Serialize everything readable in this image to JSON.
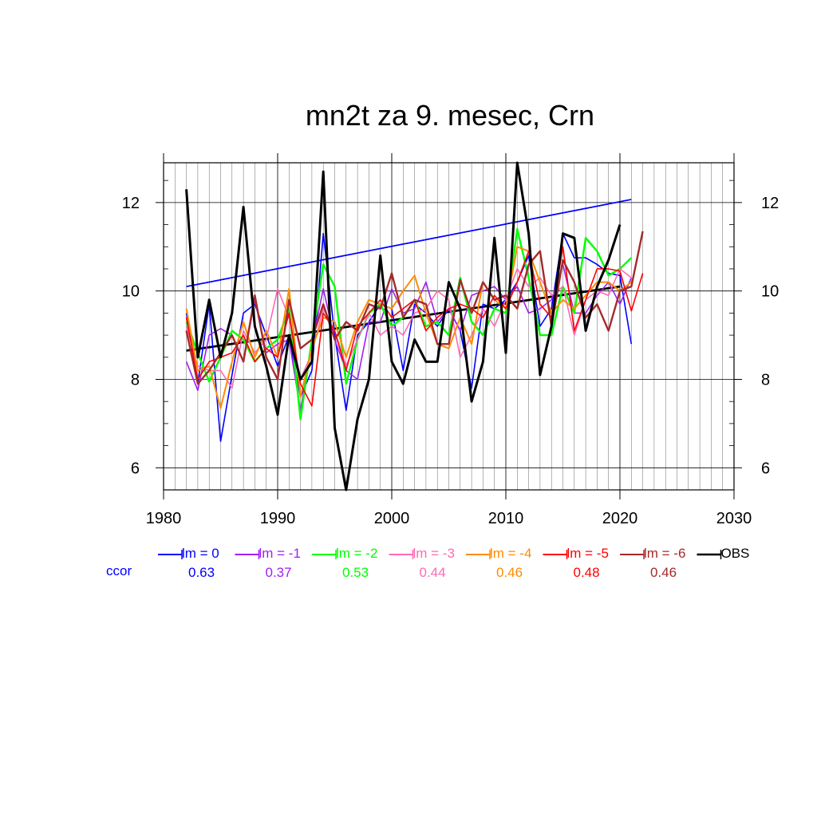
{
  "chart_data": {
    "type": "line",
    "title": "mn2t za 9. mesec, Crn",
    "xlim": [
      1980,
      2030
    ],
    "ylim": [
      5.5,
      12.9
    ],
    "x_ticks": [
      1980,
      1990,
      2000,
      2010,
      2020,
      2030
    ],
    "y_ticks": [
      6,
      8,
      10,
      12
    ],
    "ccor_label": "ccor",
    "series": [
      {
        "name": "lm = 0",
        "color": "#0000ff",
        "ccor": "0.63",
        "width": 1.6,
        "x": [
          1982,
          1983,
          1984,
          1985,
          1986,
          1987,
          1988,
          1989,
          1990,
          1991,
          1992,
          1993,
          1994,
          1995,
          1996,
          1997,
          1998,
          1999,
          2000,
          2001,
          2002,
          2003,
          2004,
          2005,
          2006,
          2007,
          2008,
          2009,
          2010,
          2011,
          2012,
          2013,
          2014,
          2015,
          2016,
          2017,
          2018,
          2019,
          2020,
          2021
        ],
        "values": [
          9.5,
          7.9,
          9.7,
          6.6,
          8.1,
          9.5,
          9.7,
          9.0,
          8.3,
          9.0,
          7.6,
          8.2,
          11.3,
          9.0,
          7.3,
          9.0,
          9.3,
          9.7,
          9.6,
          8.2,
          9.7,
          9.5,
          9.2,
          9.6,
          9.1,
          7.8,
          9.7,
          9.6,
          9.8,
          10.2,
          10.8,
          9.2,
          9.6,
          11.3,
          10.75,
          10.75,
          10.6,
          10.4,
          10.35,
          8.8
        ]
      },
      {
        "name": "lm = -1",
        "color": "#a020f0",
        "ccor": "0.37",
        "width": 1.6,
        "x": [
          1982,
          1983,
          1984,
          1985,
          1986,
          1987,
          1988,
          1989,
          1990,
          1991,
          1992,
          1993,
          1994,
          1995,
          1996,
          1997,
          1998,
          1999,
          2000,
          2001,
          2002,
          2003,
          2004,
          2005,
          2006,
          2007,
          2008,
          2009,
          2010,
          2011,
          2012,
          2013,
          2014,
          2015,
          2016,
          2017,
          2018,
          2019,
          2020,
          2021
        ],
        "values": [
          8.4,
          7.75,
          9.0,
          9.15,
          9.0,
          8.4,
          9.8,
          8.6,
          8.8,
          8.9,
          7.3,
          8.8,
          10.05,
          8.9,
          8.2,
          8.0,
          9.3,
          9.3,
          10.05,
          9.5,
          9.6,
          10.2,
          9.3,
          9.6,
          9.1,
          9.9,
          10.0,
          10.1,
          9.8,
          10.1,
          9.5,
          9.6,
          9.8,
          10.6,
          9.5,
          9.5,
          9.9,
          10.2,
          9.7,
          10.3
        ]
      },
      {
        "name": "lm = -2",
        "color": "#00ff00",
        "ccor": "0.53",
        "width": 2.4,
        "x": [
          1982,
          1983,
          1984,
          1985,
          1986,
          1987,
          1988,
          1989,
          1990,
          1991,
          1992,
          1993,
          1994,
          1995,
          1996,
          1997,
          1998,
          1999,
          2000,
          2001,
          2002,
          2003,
          2004,
          2005,
          2006,
          2007,
          2008,
          2009,
          2010,
          2011,
          2012,
          2013,
          2014,
          2015,
          2016,
          2017,
          2018,
          2019,
          2020,
          2021
        ],
        "values": [
          9.3,
          8.6,
          7.95,
          8.5,
          9.1,
          8.9,
          8.4,
          8.7,
          8.9,
          9.6,
          7.1,
          8.9,
          10.6,
          10.1,
          7.9,
          8.9,
          9.5,
          9.7,
          9.2,
          9.4,
          9.8,
          9.2,
          9.3,
          9.0,
          10.3,
          9.3,
          9.0,
          9.6,
          9.5,
          11.4,
          10.3,
          9.0,
          9.0,
          10.1,
          9.5,
          11.2,
          10.9,
          10.35,
          10.5,
          10.75
        ]
      },
      {
        "name": "lm = -3",
        "color": "#ff69b4",
        "ccor": "0.44",
        "width": 1.6,
        "x": [
          1982,
          1983,
          1984,
          1985,
          1986,
          1987,
          1988,
          1989,
          1990,
          1991,
          1992,
          1993,
          1994,
          1995,
          1996,
          1997,
          1998,
          1999,
          2000,
          2001,
          2002,
          2003,
          2004,
          2005,
          2006,
          2007,
          2008,
          2009,
          2010,
          2011,
          2012,
          2013,
          2014,
          2015,
          2016,
          2017,
          2018,
          2019,
          2020,
          2021
        ],
        "values": [
          9.2,
          8.3,
          8.2,
          8.2,
          7.8,
          9.1,
          8.6,
          8.9,
          10.05,
          9.4,
          8.0,
          8.6,
          9.6,
          9.1,
          8.3,
          8.9,
          9.5,
          9.0,
          9.2,
          9.0,
          9.5,
          9.6,
          10.0,
          9.8,
          8.5,
          9.0,
          9.6,
          9.2,
          9.8,
          10.5,
          10.1,
          10.3,
          9.9,
          10.1,
          9.0,
          9.8,
          10.0,
          9.9,
          10.5,
          10.3
        ]
      },
      {
        "name": "lm = -4",
        "color": "#ff8c00",
        "ccor": "0.46",
        "width": 2.0,
        "x": [
          1982,
          1983,
          1984,
          1985,
          1986,
          1987,
          1988,
          1989,
          1990,
          1991,
          1992,
          1993,
          1994,
          1995,
          1996,
          1997,
          1998,
          1999,
          2000,
          2001,
          2002,
          2003,
          2004,
          2005,
          2006,
          2007,
          2008,
          2009,
          2010,
          2011,
          2012,
          2013,
          2014,
          2015,
          2016,
          2017,
          2018,
          2019,
          2020,
          2021
        ],
        "values": [
          9.6,
          8.2,
          8.3,
          7.35,
          8.4,
          9.3,
          8.5,
          9.1,
          8.5,
          10.05,
          7.6,
          8.7,
          9.4,
          9.3,
          8.5,
          9.3,
          9.8,
          9.7,
          9.6,
          10.0,
          10.35,
          9.5,
          8.8,
          8.7,
          9.4,
          8.8,
          10.2,
          9.8,
          9.6,
          11.0,
          10.9,
          10.2,
          9.5,
          9.8,
          9.6,
          9.9,
          10.2,
          10.2,
          10.0,
          10.2
        ]
      },
      {
        "name": "lm = -5",
        "color": "#ff0000",
        "ccor": "0.48",
        "width": 1.6,
        "x": [
          1982,
          1983,
          1984,
          1985,
          1986,
          1987,
          1988,
          1989,
          1990,
          1991,
          1992,
          1993,
          1994,
          1995,
          1996,
          1997,
          1998,
          1999,
          2000,
          2001,
          2002,
          2003,
          2004,
          2005,
          2006,
          2007,
          2008,
          2009,
          2010,
          2011,
          2012,
          2013,
          2014,
          2015,
          2016,
          2017,
          2018,
          2019,
          2020,
          2021,
          2022
        ],
        "values": [
          9.4,
          8.0,
          8.4,
          8.5,
          8.6,
          9.0,
          8.4,
          8.7,
          8.5,
          9.5,
          7.9,
          7.4,
          9.5,
          9.1,
          8.2,
          9.2,
          9.5,
          9.8,
          9.4,
          9.6,
          9.8,
          9.1,
          9.4,
          9.6,
          9.7,
          9.6,
          9.4,
          9.9,
          9.6,
          10.2,
          10.9,
          9.7,
          9.4,
          11.0,
          9.1,
          9.8,
          10.5,
          10.5,
          10.45,
          9.55,
          10.4
        ]
      },
      {
        "name": "lm = -6",
        "color": "#a52a2a",
        "ccor": "0.46",
        "width": 2.4,
        "x": [
          1982,
          1983,
          1984,
          1985,
          1986,
          1987,
          1988,
          1989,
          1990,
          1991,
          1992,
          1993,
          1994,
          1995,
          1996,
          1997,
          1998,
          1999,
          2000,
          2001,
          2002,
          2003,
          2004,
          2005,
          2006,
          2007,
          2008,
          2009,
          2010,
          2011,
          2012,
          2013,
          2014,
          2015,
          2016,
          2017,
          2018,
          2019,
          2020,
          2021,
          2022
        ],
        "values": [
          9.1,
          7.9,
          8.2,
          8.6,
          9.0,
          8.4,
          9.9,
          8.5,
          8.0,
          9.8,
          8.7,
          8.9,
          9.7,
          8.9,
          9.3,
          9.1,
          9.7,
          9.6,
          10.4,
          9.4,
          9.8,
          9.7,
          8.8,
          8.8,
          10.25,
          9.5,
          10.2,
          9.8,
          9.9,
          9.6,
          10.6,
          10.9,
          9.2,
          10.7,
          10.2,
          9.4,
          9.7,
          9.1,
          10.0,
          10.1,
          11.35
        ]
      },
      {
        "name": "OBS",
        "color": "#000000",
        "ccor": "",
        "width": 3.0,
        "x": [
          1982,
          1983,
          1984,
          1985,
          1986,
          1987,
          1988,
          1989,
          1990,
          1991,
          1992,
          1993,
          1994,
          1995,
          1996,
          1997,
          1998,
          1999,
          2000,
          2001,
          2002,
          2003,
          2004,
          2005,
          2006,
          2007,
          2008,
          2009,
          2010,
          2011,
          2012,
          2013,
          2014,
          2015,
          2016,
          2017,
          2018,
          2019,
          2020
        ],
        "values": [
          12.3,
          8.5,
          9.8,
          8.5,
          9.5,
          11.9,
          9.2,
          8.3,
          7.2,
          9.0,
          8.0,
          8.4,
          12.7,
          6.9,
          5.5,
          7.1,
          8.0,
          10.8,
          8.4,
          7.9,
          8.9,
          8.4,
          8.4,
          10.2,
          9.6,
          7.5,
          8.4,
          11.2,
          8.6,
          12.9,
          11.3,
          8.1,
          9.2,
          11.3,
          11.2,
          9.1,
          10.1,
          10.7,
          11.5
        ]
      }
    ],
    "trend_lines": [
      {
        "name": "lm = 0 trend",
        "color": "#0000ff",
        "width": 1.6,
        "x": [
          1982,
          2021
        ],
        "values": [
          10.1,
          12.07
        ]
      },
      {
        "name": "OBS trend",
        "color": "#000000",
        "width": 2.6,
        "x": [
          1982,
          2020
        ],
        "values": [
          8.65,
          10.1
        ]
      }
    ]
  }
}
